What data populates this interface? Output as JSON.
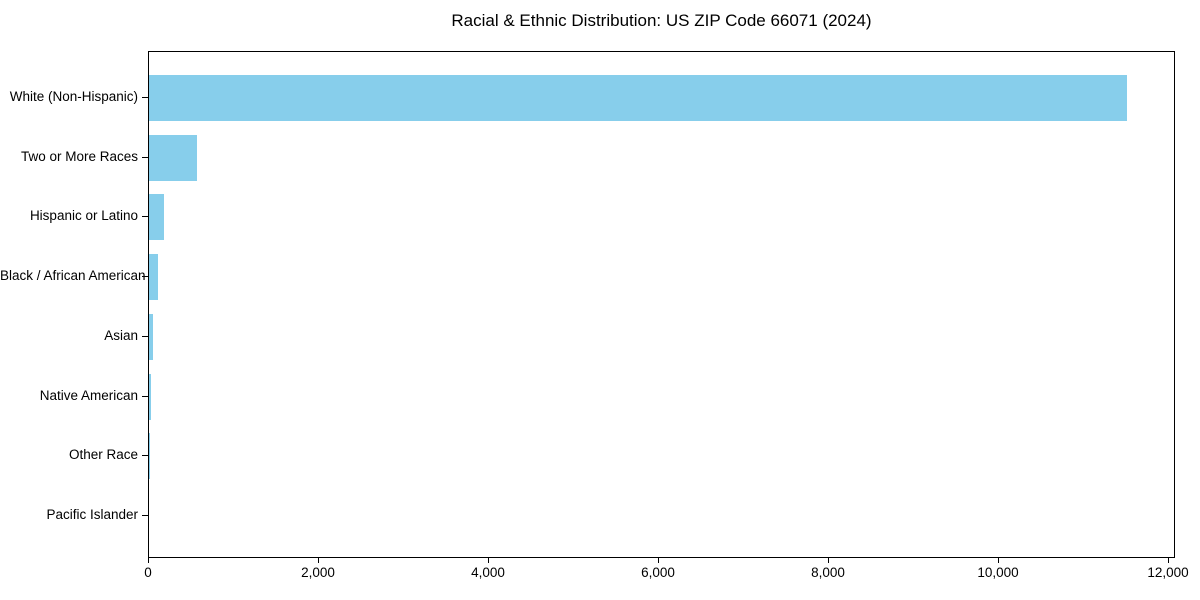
{
  "title": "Racial & Ethnic Distribution: US ZIP Code 66071 (2024)",
  "chart_data": {
    "type": "bar",
    "orientation": "horizontal",
    "title": "Racial & Ethnic Distribution: US ZIP Code 66071 (2024)",
    "categories": [
      "White (Non-Hispanic)",
      "Two or More Races",
      "Hispanic or Latino",
      "Black / African American",
      "Asian",
      "Native American",
      "Other Race",
      "Pacific Islander"
    ],
    "values": [
      11500,
      565,
      175,
      105,
      45,
      20,
      10,
      0
    ],
    "xlabel": "",
    "ylabel": "",
    "xlim": [
      0,
      12080
    ],
    "xticks": [
      0,
      2000,
      4000,
      6000,
      8000,
      10000,
      12000
    ],
    "xtick_labels": [
      "0",
      "2,000",
      "4,000",
      "6,000",
      "8,000",
      "10,000",
      "12,000"
    ],
    "bar_color": "#87CEEB",
    "axis_color": "#000000",
    "background_color": "#ffffff",
    "grid": false,
    "legend_position": "none"
  }
}
